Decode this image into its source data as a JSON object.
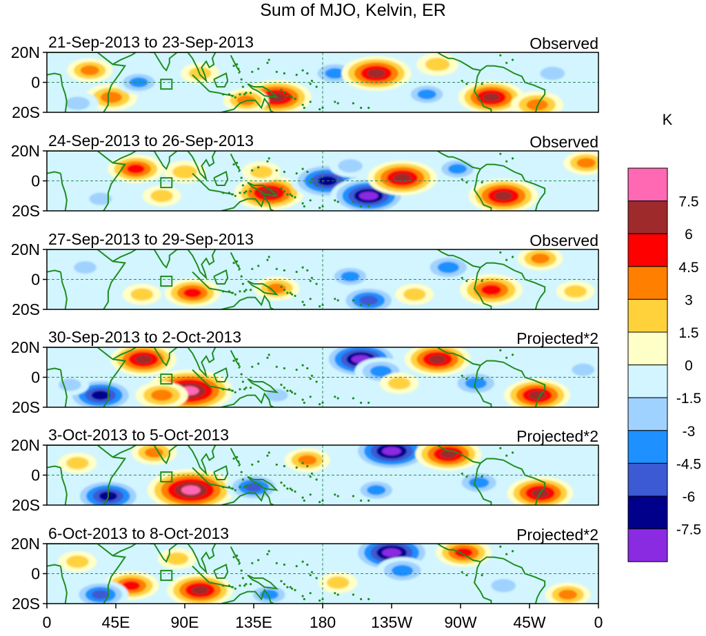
{
  "title": "Sum of MJO, Kelvin, ER",
  "panels": [
    {
      "date_range": "21-Sep-2013 to 23-Sep-2013",
      "status": "Observed"
    },
    {
      "date_range": "24-Sep-2013 to 26-Sep-2013",
      "status": "Observed"
    },
    {
      "date_range": "27-Sep-2013 to 29-Sep-2013",
      "status": "Observed"
    },
    {
      "date_range": "30-Sep-2013 to 2-Oct-2013",
      "status": "Projected*2"
    },
    {
      "date_range": "3-Oct-2013 to 5-Oct-2013",
      "status": "Projected*2"
    },
    {
      "date_range": "6-Oct-2013 to 8-Oct-2013",
      "status": "Projected*2"
    }
  ],
  "lat_labels": [
    "20N",
    "0",
    "20S"
  ],
  "lon_labels": [
    "0",
    "45E",
    "90E",
    "135E",
    "180",
    "135W",
    "90W",
    "45W",
    "0"
  ],
  "colorbar": {
    "unit": "K",
    "labels": [
      "7.5",
      "6",
      "4.5",
      "3",
      "1.5",
      "0",
      "-1.5",
      "-3",
      "-4.5",
      "-6",
      "-7.5"
    ],
    "colors": [
      "#ff69b4",
      "#9e2a2b",
      "#ff0000",
      "#ff7f00",
      "#ffd23c",
      "#ffffc8",
      "#d2f5ff",
      "#a0d2ff",
      "#1e90ff",
      "#3c5ad2",
      "#00008b",
      "#8a2be2"
    ]
  },
  "chart_data": {
    "type": "heatmap",
    "variable": "Sum of MJO, Kelvin, ER",
    "unit": "K",
    "lon_range": [
      0,
      360
    ],
    "lat_range": [
      -20,
      20
    ],
    "contour_levels": [
      -7.5,
      -6,
      -4.5,
      -3,
      -1.5,
      0,
      1.5,
      3,
      4.5,
      6,
      7.5
    ],
    "panels": [
      {
        "label": "21-Sep-2013 to 23-Sep-2013",
        "status": "Observed",
        "blobs": [
          {
            "lon": 28,
            "lat": 8,
            "value": 3
          },
          {
            "lon": 42,
            "lat": -10,
            "value": 4
          },
          {
            "lon": 100,
            "lat": 6,
            "value": 2
          },
          {
            "lon": 60,
            "lat": 0,
            "value": -3
          },
          {
            "lon": 150,
            "lat": -10,
            "value": 6.5
          },
          {
            "lon": 130,
            "lat": -12,
            "value": 3
          },
          {
            "lon": 188,
            "lat": 6,
            "value": -3.5
          },
          {
            "lon": 215,
            "lat": 6,
            "value": 6.5
          },
          {
            "lon": 255,
            "lat": 12,
            "value": 2.5
          },
          {
            "lon": 248,
            "lat": -8,
            "value": -3
          },
          {
            "lon": 290,
            "lat": -10,
            "value": 6
          },
          {
            "lon": 330,
            "lat": 6,
            "value": -2.5
          },
          {
            "lon": 320,
            "lat": -15,
            "value": 4
          },
          {
            "lon": 20,
            "lat": -14,
            "value": -2.5
          }
        ]
      },
      {
        "label": "24-Sep-2013 to 26-Sep-2013",
        "status": "Observed",
        "blobs": [
          {
            "lon": 58,
            "lat": 8,
            "value": 4.5
          },
          {
            "lon": 90,
            "lat": 6,
            "value": 2.5
          },
          {
            "lon": 75,
            "lat": -10,
            "value": 2
          },
          {
            "lon": 145,
            "lat": -8,
            "value": 6.5
          },
          {
            "lon": 140,
            "lat": 6,
            "value": 2
          },
          {
            "lon": 183,
            "lat": 0,
            "value": -7
          },
          {
            "lon": 210,
            "lat": -10,
            "value": -7.5
          },
          {
            "lon": 232,
            "lat": 2,
            "value": 6.5
          },
          {
            "lon": 198,
            "lat": 10,
            "value": -2.5
          },
          {
            "lon": 268,
            "lat": 8,
            "value": -3
          },
          {
            "lon": 298,
            "lat": -10,
            "value": 6.5
          },
          {
            "lon": 352,
            "lat": 12,
            "value": 3
          },
          {
            "lon": 35,
            "lat": -12,
            "value": -2
          }
        ]
      },
      {
        "label": "27-Sep-2013 to 29-Sep-2013",
        "status": "Observed",
        "blobs": [
          {
            "lon": 95,
            "lat": -9,
            "value": 4.5
          },
          {
            "lon": 150,
            "lat": -6,
            "value": 3
          },
          {
            "lon": 62,
            "lat": -10,
            "value": 2
          },
          {
            "lon": 198,
            "lat": 2,
            "value": -3
          },
          {
            "lon": 210,
            "lat": -14,
            "value": -5
          },
          {
            "lon": 262,
            "lat": 8,
            "value": -4
          },
          {
            "lon": 290,
            "lat": -7,
            "value": 5.5
          },
          {
            "lon": 322,
            "lat": 14,
            "value": 3
          },
          {
            "lon": 345,
            "lat": -8,
            "value": 2
          },
          {
            "lon": 25,
            "lat": 8,
            "value": -2
          },
          {
            "lon": 240,
            "lat": -10,
            "value": 2
          }
        ]
      },
      {
        "label": "30-Sep-2013 to 2-Oct-2013",
        "status": "Projected*2",
        "blobs": [
          {
            "lon": 63,
            "lat": 12,
            "value": 6
          },
          {
            "lon": 93,
            "lat": -9,
            "value": 9
          },
          {
            "lon": 75,
            "lat": -12,
            "value": 4
          },
          {
            "lon": 35,
            "lat": -12,
            "value": -6.5
          },
          {
            "lon": 15,
            "lat": -5,
            "value": -2
          },
          {
            "lon": 205,
            "lat": 12,
            "value": -7.5
          },
          {
            "lon": 218,
            "lat": 4,
            "value": -4
          },
          {
            "lon": 255,
            "lat": 12,
            "value": 6
          },
          {
            "lon": 230,
            "lat": -4,
            "value": 2
          },
          {
            "lon": 280,
            "lat": -4,
            "value": -4
          },
          {
            "lon": 320,
            "lat": -12,
            "value": 6
          },
          {
            "lon": 350,
            "lat": 5,
            "value": -2
          },
          {
            "lon": 150,
            "lat": -12,
            "value": -2
          }
        ]
      },
      {
        "label": "3-Oct-2013 to 5-Oct-2013",
        "status": "Projected*2",
        "blobs": [
          {
            "lon": 70,
            "lat": 15,
            "value": 3
          },
          {
            "lon": 94,
            "lat": -10,
            "value": 9
          },
          {
            "lon": 40,
            "lat": -14,
            "value": -6.5
          },
          {
            "lon": 135,
            "lat": -8,
            "value": -4.5
          },
          {
            "lon": 170,
            "lat": 10,
            "value": 3
          },
          {
            "lon": 225,
            "lat": 16,
            "value": -8
          },
          {
            "lon": 215,
            "lat": -10,
            "value": -3
          },
          {
            "lon": 262,
            "lat": 14,
            "value": 6
          },
          {
            "lon": 282,
            "lat": -5,
            "value": -3.5
          },
          {
            "lon": 322,
            "lat": -12,
            "value": 6
          },
          {
            "lon": 20,
            "lat": 8,
            "value": 2
          }
        ]
      },
      {
        "label": "6-Oct-2013 to 8-Oct-2013",
        "status": "Projected*2",
        "blobs": [
          {
            "lon": 55,
            "lat": -8,
            "value": 4.5
          },
          {
            "lon": 100,
            "lat": -11,
            "value": 6
          },
          {
            "lon": 145,
            "lat": -14,
            "value": -3
          },
          {
            "lon": 35,
            "lat": -14,
            "value": -4.5
          },
          {
            "lon": 85,
            "lat": 10,
            "value": 2
          },
          {
            "lon": 225,
            "lat": 14,
            "value": -8
          },
          {
            "lon": 232,
            "lat": 2,
            "value": -4
          },
          {
            "lon": 272,
            "lat": 14,
            "value": 4.5
          },
          {
            "lon": 298,
            "lat": -8,
            "value": -2.5
          },
          {
            "lon": 340,
            "lat": -14,
            "value": 3
          },
          {
            "lon": 190,
            "lat": -6,
            "value": 2
          },
          {
            "lon": 20,
            "lat": 8,
            "value": 2
          }
        ]
      }
    ]
  }
}
